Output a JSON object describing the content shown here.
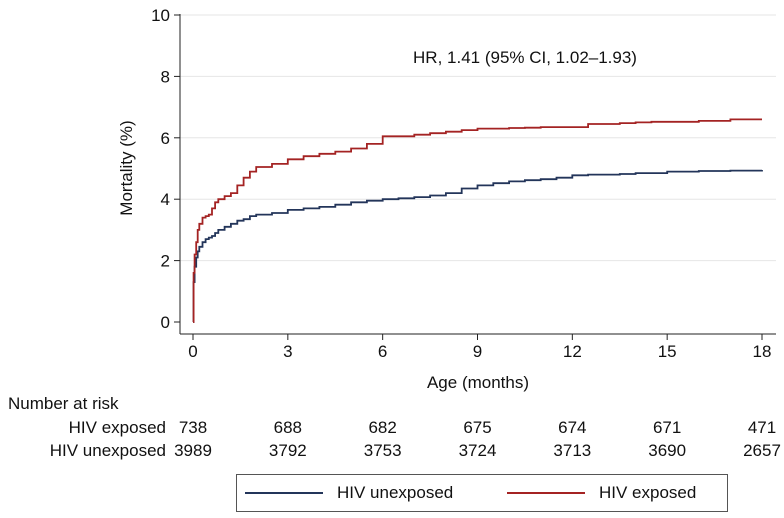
{
  "chart_data": {
    "type": "line",
    "title": "",
    "xlabel": "Age (months)",
    "ylabel": "Mortality (%)",
    "xlim": [
      0,
      18
    ],
    "ylim": [
      0,
      10
    ],
    "xticks": [
      0,
      3,
      6,
      9,
      12,
      15,
      18
    ],
    "yticks": [
      0,
      2,
      4,
      6,
      8,
      10
    ],
    "grid": true,
    "annotation": "HR, 1.41 (95% CI, 1.02–1.93)",
    "legend_position": "bottom",
    "series": [
      {
        "name": "HIV unexposed",
        "color": "#23355a",
        "x": [
          0,
          0.02,
          0.05,
          0.1,
          0.15,
          0.2,
          0.3,
          0.4,
          0.5,
          0.6,
          0.7,
          0.8,
          1.0,
          1.2,
          1.4,
          1.6,
          1.8,
          2.0,
          2.5,
          3.0,
          3.5,
          4.0,
          4.5,
          5.0,
          5.5,
          6.0,
          6.5,
          7.0,
          7.5,
          8.0,
          8.5,
          9.0,
          9.5,
          10.0,
          10.5,
          11.0,
          11.5,
          12.0,
          12.5,
          13.0,
          13.5,
          14.0,
          14.5,
          15.0,
          16.0,
          17.0,
          18.0
        ],
        "y": [
          0,
          1.3,
          1.8,
          2.1,
          2.3,
          2.45,
          2.6,
          2.7,
          2.75,
          2.8,
          2.9,
          3.0,
          3.1,
          3.2,
          3.3,
          3.35,
          3.45,
          3.5,
          3.55,
          3.65,
          3.7,
          3.75,
          3.82,
          3.9,
          3.95,
          4.0,
          4.03,
          4.07,
          4.12,
          4.2,
          4.35,
          4.45,
          4.52,
          4.58,
          4.62,
          4.65,
          4.7,
          4.78,
          4.8,
          4.8,
          4.82,
          4.85,
          4.85,
          4.9,
          4.92,
          4.93,
          4.95
        ]
      },
      {
        "name": "HIV exposed",
        "color": "#a42323",
        "x": [
          0,
          0.02,
          0.05,
          0.1,
          0.15,
          0.2,
          0.3,
          0.4,
          0.5,
          0.6,
          0.7,
          0.8,
          1.0,
          1.2,
          1.4,
          1.6,
          1.8,
          2.0,
          2.5,
          3.0,
          3.5,
          4.0,
          4.5,
          5.0,
          5.5,
          6.0,
          6.5,
          7.0,
          7.5,
          8.0,
          8.5,
          9.0,
          9.5,
          10.0,
          10.5,
          11.0,
          11.5,
          12.0,
          12.5,
          13.0,
          13.5,
          14.0,
          14.5,
          15.0,
          16.0,
          17.0,
          18.0
        ],
        "y": [
          0,
          1.6,
          2.2,
          2.6,
          3.0,
          3.2,
          3.4,
          3.45,
          3.5,
          3.7,
          3.9,
          4.0,
          4.1,
          4.2,
          4.45,
          4.7,
          4.9,
          5.05,
          5.15,
          5.3,
          5.4,
          5.48,
          5.55,
          5.65,
          5.8,
          6.05,
          6.05,
          6.1,
          6.15,
          6.2,
          6.25,
          6.3,
          6.3,
          6.32,
          6.33,
          6.35,
          6.35,
          6.35,
          6.45,
          6.45,
          6.48,
          6.5,
          6.52,
          6.52,
          6.55,
          6.6,
          6.6
        ]
      }
    ]
  },
  "risk_table": {
    "title": "Number at risk",
    "rows": [
      {
        "label": "HIV exposed",
        "values": [
          "738",
          "688",
          "682",
          "675",
          "674",
          "671",
          "471"
        ]
      },
      {
        "label": "HIV unexposed",
        "values": [
          "3989",
          "3792",
          "3753",
          "3724",
          "3713",
          "3690",
          "2657"
        ]
      }
    ]
  },
  "legend": {
    "items": [
      {
        "label": "HIV unexposed",
        "color": "#23355a"
      },
      {
        "label": "HIV exposed",
        "color": "#a42323"
      }
    ]
  }
}
